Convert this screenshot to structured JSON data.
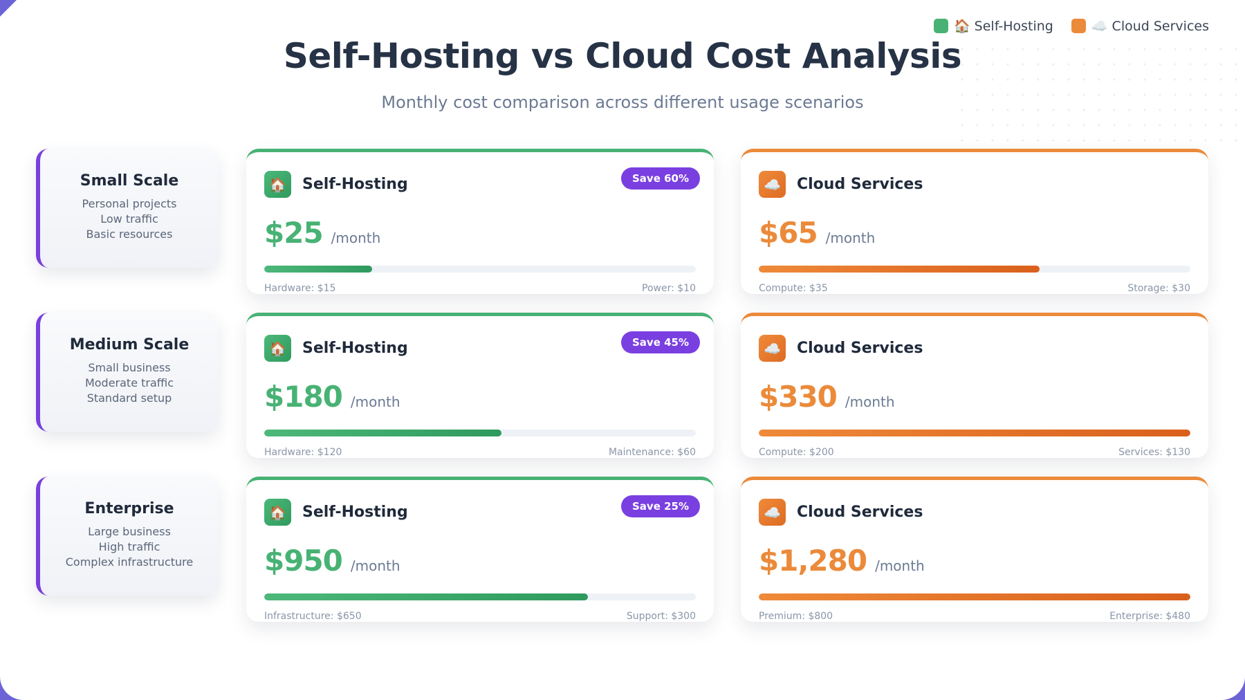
{
  "header": {
    "title": "Self-Hosting vs Cloud Cost Analysis",
    "subtitle": "Monthly cost comparison across different usage scenarios"
  },
  "legend": [
    {
      "label": "🏠 Self-Hosting",
      "color": "#48b274"
    },
    {
      "label": "☁️ Cloud Services",
      "color": "#eb8a3a"
    }
  ],
  "colors": {
    "self": "#48b274",
    "cloud": "#eb8a3a",
    "accent": "#7a3fe0"
  },
  "scales": [
    {
      "title": "Small Scale",
      "desc": [
        "Personal projects",
        "Low traffic",
        "Basic resources"
      ],
      "self": {
        "name": "Self-Hosting",
        "icon": "house-icon",
        "price": "$25",
        "per": "/month",
        "save": "Save 60%",
        "bar": 0.25,
        "left": "Hardware: $15",
        "right": "Power: $10"
      },
      "cloud": {
        "name": "Cloud Services",
        "icon": "cloud-icon",
        "price": "$65",
        "per": "/month",
        "bar": 0.65,
        "left": "Compute: $35",
        "right": "Storage: $30"
      }
    },
    {
      "title": "Medium Scale",
      "desc": [
        "Small business",
        "Moderate traffic",
        "Standard setup"
      ],
      "self": {
        "name": "Self-Hosting",
        "icon": "house-icon",
        "price": "$180",
        "per": "/month",
        "save": "Save 45%",
        "bar": 0.55,
        "left": "Hardware: $120",
        "right": "Maintenance: $60"
      },
      "cloud": {
        "name": "Cloud Services",
        "icon": "cloud-icon",
        "price": "$330",
        "per": "/month",
        "bar": 1.0,
        "left": "Compute: $200",
        "right": "Services: $130"
      }
    },
    {
      "title": "Enterprise",
      "desc": [
        "Large business",
        "High traffic",
        "Complex infrastructure"
      ],
      "self": {
        "name": "Self-Hosting",
        "icon": "house-icon",
        "price": "$950",
        "per": "/month",
        "save": "Save 25%",
        "bar": 0.75,
        "left": "Infrastructure: $650",
        "right": "Support: $300"
      },
      "cloud": {
        "name": "Cloud Services",
        "icon": "cloud-icon",
        "price": "$1,280",
        "per": "/month",
        "bar": 1.0,
        "left": "Premium: $800",
        "right": "Enterprise: $480"
      }
    }
  ]
}
